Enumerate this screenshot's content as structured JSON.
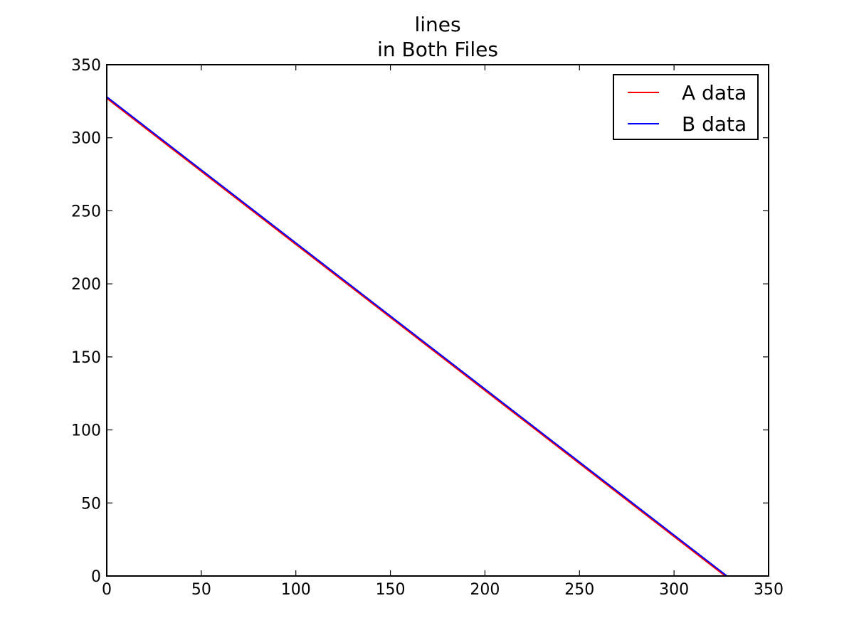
{
  "chart_data": {
    "type": "line",
    "title": "lines",
    "subtitle": "in Both Files",
    "xlabel": "",
    "ylabel": "",
    "xlim": [
      0,
      350
    ],
    "ylim": [
      0,
      350
    ],
    "xticks": [
      "0",
      "50",
      "100",
      "150",
      "200",
      "250",
      "300",
      "350"
    ],
    "yticks": [
      "0",
      "50",
      "100",
      "150",
      "200",
      "250",
      "300",
      "350"
    ],
    "grid": false,
    "legend_position": "top-right",
    "series": [
      {
        "name": "A data",
        "color": "#ff0000",
        "x": [
          0,
          327
        ],
        "y": [
          327,
          0
        ]
      },
      {
        "name": "B data",
        "color": "#0000ff",
        "x": [
          0,
          328
        ],
        "y": [
          328,
          0
        ]
      }
    ]
  }
}
